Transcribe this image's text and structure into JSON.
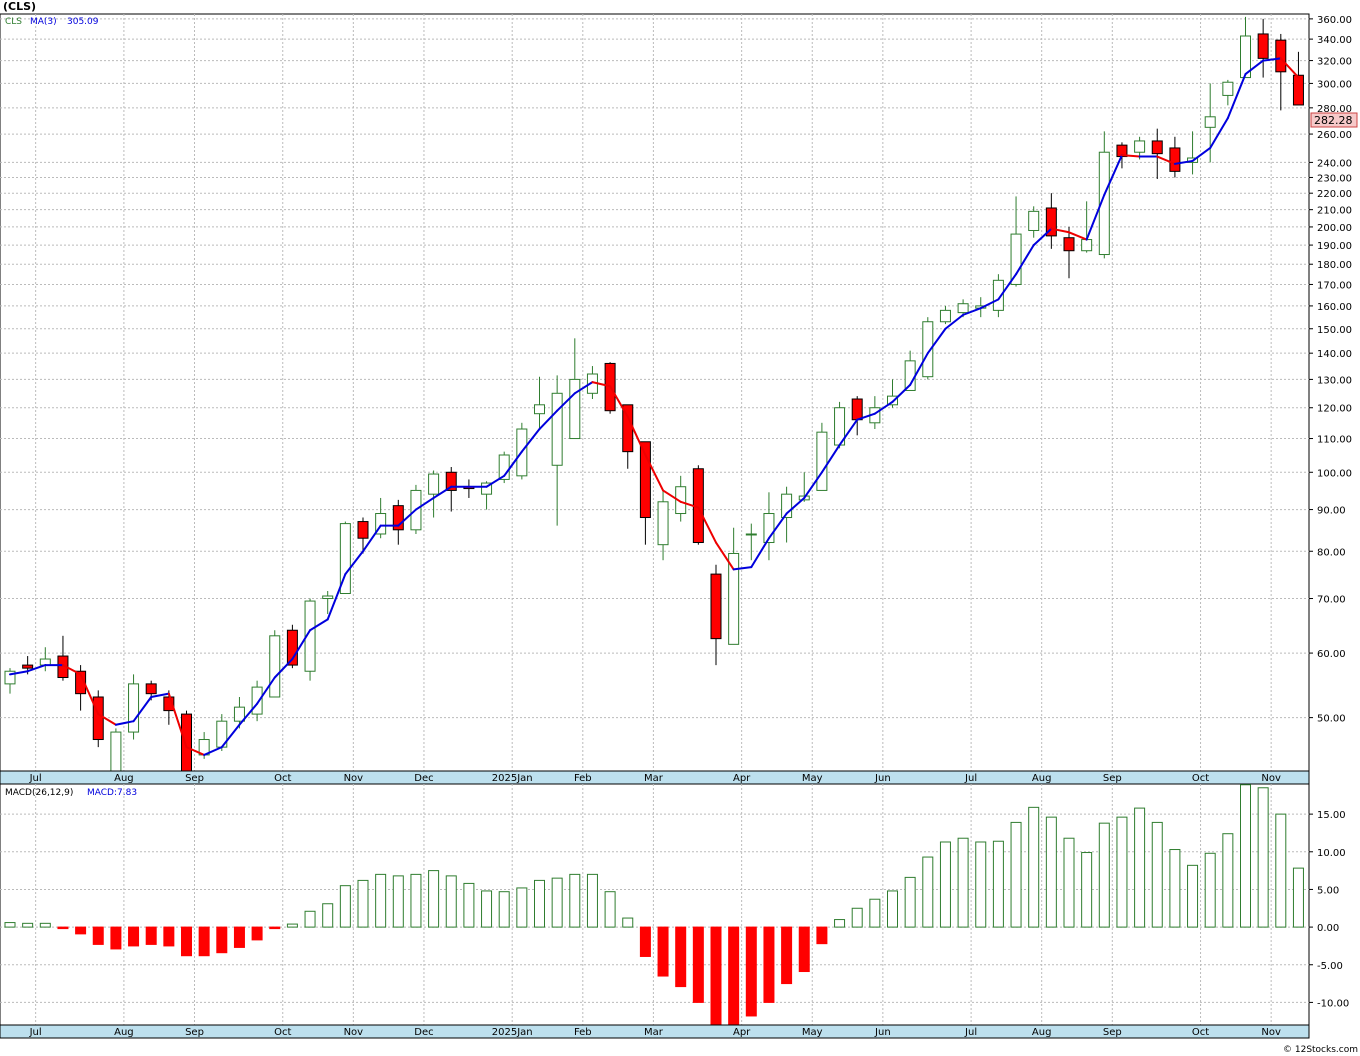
{
  "header": {
    "title": "(CLS)",
    "legend_symbol": "CLS",
    "legend_ma_label": "MA(3)",
    "legend_ma_value": "305.09",
    "macd_label": "MACD(26,12,9)",
    "macd_value_label": "MACD:7.83",
    "last_price_label": "282.28",
    "watermark": "© 12Stocks.com"
  },
  "colors": {
    "up_candle_edge": "#2f7d2f",
    "down_candle_fill": "#ff0000",
    "ma_rising": "#0000dd",
    "ma_falling": "#ee0000",
    "macd_positive": "#2f7d2f",
    "macd_negative": "#ff0000",
    "axis_band": "#bde0ee",
    "grid": "#bbbbbb"
  },
  "chart_data": [
    {
      "type": "candlestick",
      "series_name": "CLS",
      "scale": "log",
      "ylim": [
        43,
        365
      ],
      "y_ticks": [
        50,
        60,
        70,
        80,
        90,
        100,
        110,
        120,
        130,
        140,
        150,
        160,
        170,
        180,
        190,
        200,
        210,
        220,
        230,
        240,
        260,
        280,
        300,
        320,
        340,
        360
      ],
      "y_tick_labels": [
        "50.00",
        "60.00",
        "70.00",
        "80.00",
        "90.00",
        "100.00",
        "110.00",
        "120.00",
        "130.00",
        "140.00",
        "150.00",
        "160.00",
        "170.00",
        "180.00",
        "190.00",
        "200.00",
        "210.00",
        "220.00",
        "230.00",
        "240.00",
        "260.00",
        "280.00",
        "300.00",
        "320.00",
        "340.00",
        "360.00"
      ],
      "x_labels": [
        {
          "label": "Jul",
          "index": 1
        },
        {
          "label": "Aug",
          "index": 6
        },
        {
          "label": "Sep",
          "index": 10
        },
        {
          "label": "Oct",
          "index": 15
        },
        {
          "label": "Nov",
          "index": 19
        },
        {
          "label": "Dec",
          "index": 23
        },
        {
          "label": "2025Jan",
          "index": 28
        },
        {
          "label": "Feb",
          "index": 32
        },
        {
          "label": "Mar",
          "index": 36
        },
        {
          "label": "Apr",
          "index": 41
        },
        {
          "label": "May",
          "index": 45
        },
        {
          "label": "Jun",
          "index": 49
        },
        {
          "label": "Jul",
          "index": 54
        },
        {
          "label": "Aug",
          "index": 58
        },
        {
          "label": "Sep",
          "index": 62
        },
        {
          "label": "Oct",
          "index": 67
        },
        {
          "label": "Nov",
          "index": 71
        }
      ],
      "candles": [
        {
          "o": 55.0,
          "h": 57.5,
          "l": 53.5,
          "c": 57.0
        },
        {
          "o": 58.0,
          "h": 59.5,
          "l": 56.5,
          "c": 57.5
        },
        {
          "o": 58.0,
          "h": 61.0,
          "l": 57.0,
          "c": 59.0
        },
        {
          "o": 59.5,
          "h": 63.0,
          "l": 55.5,
          "c": 56.0
        },
        {
          "o": 57.0,
          "h": 58.0,
          "l": 51.0,
          "c": 53.5
        },
        {
          "o": 53.0,
          "h": 54.0,
          "l": 46.0,
          "c": 47.0
        },
        {
          "o": 42.0,
          "h": 48.5,
          "l": 41.5,
          "c": 48.0
        },
        {
          "o": 48.0,
          "h": 56.5,
          "l": 47.0,
          "c": 55.0
        },
        {
          "o": 55.0,
          "h": 55.5,
          "l": 52.5,
          "c": 53.5
        },
        {
          "o": 53.0,
          "h": 54.0,
          "l": 49.0,
          "c": 51.0
        },
        {
          "o": 50.5,
          "h": 51.0,
          "l": 42.0,
          "c": 42.5
        },
        {
          "o": 45.0,
          "h": 48.0,
          "l": 44.5,
          "c": 47.0
        },
        {
          "o": 46.0,
          "h": 50.5,
          "l": 45.5,
          "c": 49.5
        },
        {
          "o": 49.5,
          "h": 53.0,
          "l": 48.5,
          "c": 51.5
        },
        {
          "o": 50.5,
          "h": 55.5,
          "l": 49.5,
          "c": 54.5
        },
        {
          "o": 53.0,
          "h": 64.0,
          "l": 53.0,
          "c": 63.0
        },
        {
          "o": 64.0,
          "h": 65.0,
          "l": 57.5,
          "c": 58.0
        },
        {
          "o": 57.0,
          "h": 70.0,
          "l": 55.5,
          "c": 69.5
        },
        {
          "o": 70.0,
          "h": 71.5,
          "l": 67.0,
          "c": 70.5
        },
        {
          "o": 71.0,
          "h": 87.0,
          "l": 71.0,
          "c": 86.5
        },
        {
          "o": 87.0,
          "h": 88.0,
          "l": 79.5,
          "c": 83.0
        },
        {
          "o": 84.0,
          "h": 93.0,
          "l": 83.0,
          "c": 89.0
        },
        {
          "o": 91.0,
          "h": 92.5,
          "l": 81.5,
          "c": 85.0
        },
        {
          "o": 85.0,
          "h": 96.5,
          "l": 84.0,
          "c": 95.0
        },
        {
          "o": 94.0,
          "h": 100.5,
          "l": 88.0,
          "c": 99.5
        },
        {
          "o": 100.0,
          "h": 101.5,
          "l": 89.5,
          "c": 95.0
        },
        {
          "o": 96.0,
          "h": 98.0,
          "l": 93.0,
          "c": 95.5
        },
        {
          "o": 94.0,
          "h": 97.5,
          "l": 90.0,
          "c": 97.0
        },
        {
          "o": 98.0,
          "h": 106.0,
          "l": 97.0,
          "c": 105.0
        },
        {
          "o": 99.0,
          "h": 115.0,
          "l": 98.0,
          "c": 113.0
        },
        {
          "o": 118.0,
          "h": 131.0,
          "l": 113.0,
          "c": 121.0
        },
        {
          "o": 102.0,
          "h": 131.5,
          "l": 86.0,
          "c": 125.0
        },
        {
          "o": 110.0,
          "h": 146.0,
          "l": 110.0,
          "c": 130.0
        },
        {
          "o": 125.0,
          "h": 135.0,
          "l": 123.0,
          "c": 132.0
        },
        {
          "o": 136.0,
          "h": 136.5,
          "l": 118.0,
          "c": 119.0
        },
        {
          "o": 121.0,
          "h": 121.0,
          "l": 101.0,
          "c": 106.0
        },
        {
          "o": 109.0,
          "h": 109.0,
          "l": 81.5,
          "c": 88.0
        },
        {
          "o": 81.5,
          "h": 95.0,
          "l": 78.0,
          "c": 92.0
        },
        {
          "o": 89.0,
          "h": 99.0,
          "l": 87.0,
          "c": 96.0
        },
        {
          "o": 101.0,
          "h": 102.0,
          "l": 81.5,
          "c": 82.0
        },
        {
          "o": 75.0,
          "h": 77.0,
          "l": 58.0,
          "c": 62.5
        },
        {
          "o": 61.5,
          "h": 85.5,
          "l": 61.5,
          "c": 79.5
        },
        {
          "o": 84.0,
          "h": 86.5,
          "l": 78.0,
          "c": 84.0
        },
        {
          "o": 82.0,
          "h": 94.5,
          "l": 78.0,
          "c": 89.0
        },
        {
          "o": 88.0,
          "h": 96.0,
          "l": 82.0,
          "c": 94.0
        },
        {
          "o": 92.5,
          "h": 100.0,
          "l": 92.0,
          "c": 93.5
        },
        {
          "o": 95.0,
          "h": 115.0,
          "l": 95.0,
          "c": 112.0
        },
        {
          "o": 108.0,
          "h": 122.0,
          "l": 107.0,
          "c": 120.0
        },
        {
          "o": 123.0,
          "h": 124.0,
          "l": 111.0,
          "c": 116.0
        },
        {
          "o": 115.0,
          "h": 124.0,
          "l": 113.0,
          "c": 120.0
        },
        {
          "o": 121.0,
          "h": 130.0,
          "l": 120.0,
          "c": 124.0
        },
        {
          "o": 126.0,
          "h": 141.0,
          "l": 126.0,
          "c": 137.0
        },
        {
          "o": 131.0,
          "h": 155.0,
          "l": 130.0,
          "c": 153.0
        },
        {
          "o": 153.0,
          "h": 160.0,
          "l": 152.0,
          "c": 158.0
        },
        {
          "o": 157.0,
          "h": 163.0,
          "l": 155.0,
          "c": 161.0
        },
        {
          "o": 159.0,
          "h": 164.0,
          "l": 155.0,
          "c": 160.0
        },
        {
          "o": 158.0,
          "h": 175.0,
          "l": 155.0,
          "c": 172.0
        },
        {
          "o": 170.0,
          "h": 218.0,
          "l": 169.0,
          "c": 196.0
        },
        {
          "o": 198.0,
          "h": 212.0,
          "l": 194.0,
          "c": 209.0
        },
        {
          "o": 211.0,
          "h": 220.0,
          "l": 188.0,
          "c": 195.0
        },
        {
          "o": 194.0,
          "h": 200.0,
          "l": 173.0,
          "c": 187.0
        },
        {
          "o": 187.0,
          "h": 215.0,
          "l": 186.0,
          "c": 193.0
        },
        {
          "o": 185.0,
          "h": 262.0,
          "l": 183.0,
          "c": 247.0
        },
        {
          "o": 252.0,
          "h": 254.0,
          "l": 236.0,
          "c": 244.0
        },
        {
          "o": 247.0,
          "h": 258.0,
          "l": 242.0,
          "c": 255.0
        },
        {
          "o": 255.0,
          "h": 264.0,
          "l": 229.0,
          "c": 246.0
        },
        {
          "o": 250.0,
          "h": 258.0,
          "l": 230.0,
          "c": 234.0
        },
        {
          "o": 240.0,
          "h": 262.0,
          "l": 232.0,
          "c": 243.0
        },
        {
          "o": 265.0,
          "h": 300.0,
          "l": 240.0,
          "c": 273.0
        },
        {
          "o": 290.0,
          "h": 303.0,
          "l": 282.0,
          "c": 301.0
        },
        {
          "o": 305.0,
          "h": 362.0,
          "l": 305.0,
          "c": 343.0
        },
        {
          "o": 345.0,
          "h": 360.0,
          "l": 305.0,
          "c": 322.0
        },
        {
          "o": 339.0,
          "h": 345.0,
          "l": 278.0,
          "c": 310.0
        },
        {
          "o": 307.0,
          "h": 328.0,
          "l": 283.0,
          "c": 282.28
        }
      ],
      "ma": [
        56.5,
        57.0,
        58.0,
        58.0,
        56.5,
        50.5,
        49.0,
        49.5,
        53.0,
        53.5,
        46.0,
        45.0,
        46.0,
        49.0,
        52.0,
        56.0,
        59.0,
        64.0,
        66.0,
        75.0,
        80.0,
        86.0,
        86.0,
        90.0,
        93.0,
        96.0,
        96.0,
        96.0,
        99.0,
        106.0,
        113.0,
        119.0,
        125.0,
        129.0,
        127.5,
        117.0,
        105.0,
        95.0,
        92.0,
        90.5,
        82.0,
        76.0,
        76.5,
        83.0,
        89.0,
        93.0,
        100.0,
        108.0,
        116.0,
        118.0,
        122.0,
        128.0,
        140.0,
        150.0,
        156.0,
        159.0,
        163.0,
        175.0,
        190.0,
        199.0,
        197.0,
        193.0,
        219.0,
        245.0,
        244.0,
        244.0,
        239.0,
        241.0,
        250.0,
        272.0,
        308.0,
        320.0,
        322.0,
        305.09
      ]
    },
    {
      "type": "bar",
      "series_name": "MACD",
      "ylim": [
        -13,
        19
      ],
      "y_ticks": [
        -10,
        -5,
        0,
        5,
        10,
        15
      ],
      "y_tick_labels": [
        "-10.00",
        "-5.00",
        "0.00",
        "5.00",
        "10.00",
        "15.00"
      ],
      "x_labels": [
        {
          "label": "Jul",
          "index": 1
        },
        {
          "label": "Aug",
          "index": 6
        },
        {
          "label": "Sep",
          "index": 10
        },
        {
          "label": "Oct",
          "index": 15
        },
        {
          "label": "Nov",
          "index": 19
        },
        {
          "label": "Dec",
          "index": 23
        },
        {
          "label": "2025Jan",
          "index": 28
        },
        {
          "label": "Feb",
          "index": 32
        },
        {
          "label": "Mar",
          "index": 36
        },
        {
          "label": "Apr",
          "index": 41
        },
        {
          "label": "May",
          "index": 45
        },
        {
          "label": "Jun",
          "index": 49
        },
        {
          "label": "Jul",
          "index": 54
        },
        {
          "label": "Aug",
          "index": 58
        },
        {
          "label": "Sep",
          "index": 62
        },
        {
          "label": "Oct",
          "index": 67
        },
        {
          "label": "Nov",
          "index": 71
        }
      ],
      "values": [
        0.6,
        0.5,
        0.5,
        -0.2,
        -0.9,
        -2.3,
        -2.9,
        -2.5,
        -2.3,
        -2.5,
        -3.8,
        -3.8,
        -3.4,
        -2.7,
        -1.7,
        -0.2,
        0.4,
        2.1,
        3.1,
        5.5,
        6.2,
        7.0,
        6.8,
        7.0,
        7.5,
        6.8,
        5.8,
        4.8,
        4.7,
        5.2,
        6.2,
        6.5,
        7.0,
        7.0,
        4.7,
        1.2,
        -3.9,
        -6.5,
        -7.9,
        -10.0,
        -13.2,
        -13.0,
        -11.8,
        -10.0,
        -7.5,
        -5.9,
        -2.2,
        1.0,
        2.5,
        3.7,
        4.8,
        6.6,
        9.3,
        11.3,
        11.8,
        11.3,
        11.4,
        13.9,
        15.9,
        14.6,
        11.8,
        9.9,
        13.8,
        14.6,
        15.8,
        13.9,
        10.3,
        8.2,
        9.8,
        12.4,
        18.9,
        18.5,
        15.0,
        7.83
      ]
    }
  ]
}
